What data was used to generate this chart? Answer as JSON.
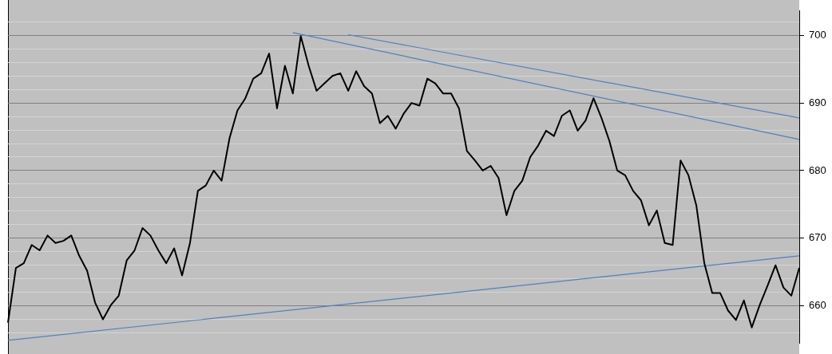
{
  "chart_data": {
    "type": "line",
    "categories": [
      null,
      null,
      null,
      null,
      null,
      null,
      null,
      null,
      null,
      null,
      null,
      null,
      null,
      null,
      null,
      null,
      null,
      null,
      null,
      null,
      null,
      null,
      null,
      null,
      null,
      null,
      null,
      null,
      null,
      null,
      null,
      null,
      null,
      null,
      null,
      null,
      null,
      null,
      null,
      null,
      null,
      null,
      null,
      null,
      null,
      null,
      null,
      null,
      null,
      null,
      null,
      null,
      null,
      null,
      null,
      null,
      null,
      null,
      null,
      null,
      null,
      null,
      null,
      null,
      null,
      null,
      null,
      null,
      null,
      null,
      null,
      null,
      null,
      null,
      null,
      null,
      null,
      null,
      null,
      null,
      null,
      null,
      null,
      null,
      null,
      null,
      null,
      null,
      null,
      null,
      null,
      null,
      null,
      null,
      null,
      null,
      null,
      null,
      null,
      null,
      null
    ],
    "series": [
      {
        "color": "#000000",
        "values": [
          657.5,
          665.6,
          666.3,
          669.0,
          668.2,
          670.4,
          669.3,
          669.6,
          670.4,
          667.4,
          665.2,
          660.5,
          658.0,
          660.1,
          661.5,
          666.7,
          668.2,
          671.5,
          670.4,
          668.2,
          666.3,
          668.5,
          664.5,
          669.3,
          677.0,
          677.8,
          680.0,
          678.5,
          684.8,
          688.9,
          690.7,
          693.6,
          694.4,
          697.3,
          689.2,
          695.5,
          691.4,
          699.9,
          695.5,
          691.8,
          692.9,
          694.0,
          694.4,
          691.8,
          694.7,
          692.5,
          691.4,
          687.0,
          688.1,
          686.2,
          688.4,
          690.0,
          689.6,
          693.6,
          692.9,
          691.4,
          691.4,
          689.2,
          682.9,
          681.5,
          680.0,
          680.7,
          678.9,
          673.4,
          677.0,
          678.5,
          682.0,
          683.7,
          685.9,
          685.1,
          688.1,
          688.9,
          685.9,
          687.4,
          690.7,
          687.8,
          684.4,
          680.0,
          679.3,
          677.0,
          675.6,
          671.9,
          674.1,
          669.3,
          669.0,
          681.5,
          679.3,
          674.8,
          666.3,
          661.9,
          661.9,
          659.3,
          657.9,
          660.8,
          656.8,
          660.1,
          663.0,
          666.0,
          662.7,
          661.5,
          665.6
        ]
      },
      {
        "type": "line",
        "color": "#4f81bd",
        "values": [
          654.9,
          null,
          null,
          null,
          null,
          null,
          null,
          null,
          null,
          null,
          null,
          null,
          null,
          null,
          null,
          null,
          null,
          null,
          null,
          null,
          null,
          null,
          null,
          null,
          null,
          null,
          null,
          null,
          null,
          null,
          null,
          null,
          null,
          null,
          null,
          null,
          null,
          null,
          null,
          null,
          null,
          null,
          null,
          null,
          null,
          null,
          null,
          null,
          null,
          null,
          null,
          null,
          null,
          null,
          null,
          null,
          null,
          null,
          null,
          null,
          null,
          null,
          null,
          null,
          null,
          null,
          null,
          null,
          null,
          null,
          null,
          null,
          null,
          null,
          null,
          null,
          null,
          null,
          null,
          null,
          null,
          null,
          null,
          null,
          null,
          null,
          null,
          null,
          null,
          null,
          null,
          null,
          null,
          null,
          null,
          null,
          null,
          null,
          null,
          null,
          667.4
        ]
      },
      {
        "type": "line",
        "color": "#4f81bd",
        "values": [
          null,
          null,
          null,
          null,
          null,
          null,
          null,
          null,
          null,
          null,
          null,
          null,
          null,
          null,
          null,
          null,
          null,
          null,
          null,
          null,
          null,
          null,
          null,
          null,
          null,
          null,
          null,
          null,
          null,
          null,
          null,
          null,
          null,
          null,
          null,
          null,
          700.4,
          null,
          null,
          null,
          null,
          null,
          null,
          null,
          null,
          null,
          null,
          null,
          null,
          null,
          null,
          null,
          null,
          null,
          null,
          null,
          null,
          null,
          null,
          null,
          null,
          null,
          null,
          null,
          null,
          null,
          null,
          null,
          null,
          null,
          null,
          null,
          null,
          null,
          null,
          null,
          null,
          null,
          null,
          null,
          null,
          null,
          null,
          null,
          null,
          null,
          null,
          null,
          null,
          null,
          null,
          null,
          null,
          null,
          null,
          null,
          null,
          null,
          null,
          null,
          684.6
        ]
      },
      {
        "type": "line",
        "color": "#4f81bd",
        "values": [
          null,
          null,
          null,
          null,
          null,
          null,
          null,
          null,
          null,
          null,
          null,
          null,
          null,
          null,
          null,
          null,
          null,
          null,
          null,
          null,
          null,
          null,
          null,
          null,
          null,
          null,
          null,
          null,
          null,
          null,
          null,
          null,
          null,
          null,
          null,
          null,
          null,
          null,
          null,
          null,
          null,
          null,
          null,
          700.1,
          null,
          null,
          null,
          null,
          null,
          null,
          null,
          null,
          null,
          null,
          null,
          null,
          null,
          null,
          null,
          null,
          null,
          null,
          null,
          null,
          null,
          null,
          null,
          null,
          null,
          null,
          null,
          null,
          null,
          null,
          null,
          null,
          null,
          null,
          null,
          null,
          null,
          null,
          null,
          null,
          null,
          null,
          null,
          null,
          null,
          null,
          null,
          null,
          null,
          null,
          null,
          null,
          null,
          null,
          null,
          null,
          687.8
        ]
      }
    ],
    "ylim": [
      654.5,
      703.6
    ],
    "yticks": [
      {
        "value": 656,
        "label": null
      },
      {
        "value": 658,
        "label": null
      },
      660,
      {
        "value": 662,
        "label": null
      },
      {
        "value": 664,
        "label": null
      },
      {
        "value": 666,
        "label": null
      },
      {
        "value": 668,
        "label": null
      },
      670,
      {
        "value": 672,
        "label": null
      },
      {
        "value": 674,
        "label": null
      },
      {
        "value": 676,
        "label": null
      },
      {
        "value": 678,
        "label": null
      },
      680,
      {
        "value": 682,
        "label": null
      },
      {
        "value": 684,
        "label": null
      },
      {
        "value": 686,
        "label": null
      },
      {
        "value": 688,
        "label": null
      },
      690,
      {
        "value": 692,
        "label": null
      },
      {
        "value": 694,
        "label": null
      },
      {
        "value": 696,
        "label": null
      },
      {
        "value": 698,
        "label": null
      },
      700,
      {
        "value": 702,
        "label": null
      }
    ],
    "tick_labels": "y",
    "grid": "y",
    "legend": false,
    "marker": "none"
  }
}
